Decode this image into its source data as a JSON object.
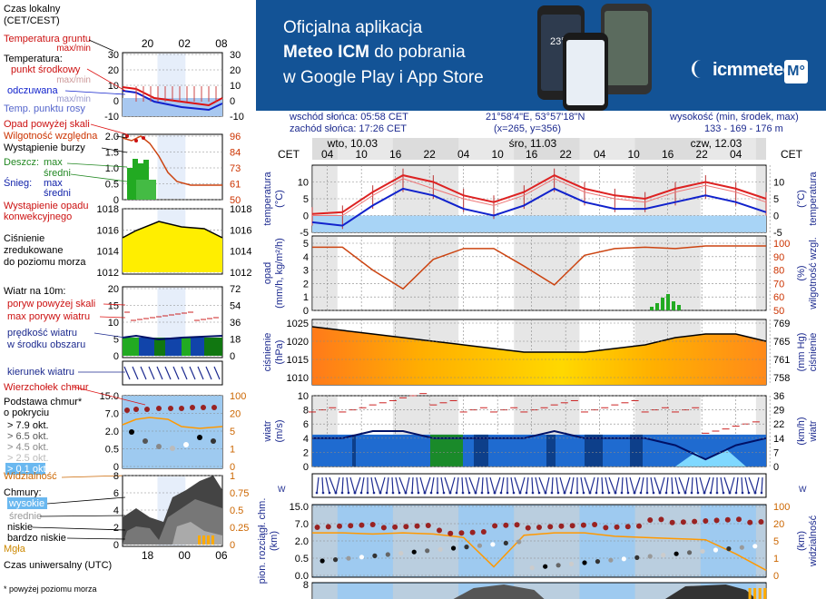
{
  "banner": {
    "line1": "Oficjalna aplikacja",
    "line2_bold": "Meteo ICM",
    "line2_rest": " do pobrania",
    "line3": "w Google Play i App Store",
    "phone_text": "23°",
    "logo_text": "icmmeteo",
    "logo_mark": "M°",
    "bg_color": "#135396"
  },
  "info": {
    "sunrise": "wschód słońca: 05:58 CET",
    "sunset": "zachód słońca: 17:26 CET",
    "coords": "21°58'4\"E, 53°57'18\"N",
    "grid": "(x=265,  y=356)",
    "elev_label": "wysokość (min, środek, max)",
    "elev_values": "133 - 169 - 176 m"
  },
  "legend": {
    "time_local_1": "Czas lokalny",
    "time_local_2": "(CET/CEST)",
    "hours_top": [
      "20",
      "02",
      "08"
    ],
    "temp_ground_1": "Temperatura gruntu",
    "temp_ground_2": "max/min",
    "temperature": "Temperatura:",
    "temp_mid": "punkt środkowy",
    "temp_maxmin": "max/min",
    "temp_feel": "odczuwana",
    "temp_feel_maxmin": "max/min",
    "temp_dew": "Temp. punktu rosy",
    "precip_title": "Opad powyżej skali",
    "humidity": "Wilgotność względna",
    "storm": "Wystąpienie burzy",
    "rain": "Deszcz:",
    "rain_max": "max",
    "rain_mean": "średni",
    "snow": "Śnieg:",
    "snow_max": "max",
    "snow_mean": "średni",
    "precip_occ_1": "Wystąpienie opadu",
    "precip_occ_2": "konwekcyjnego",
    "pressure_1": "Ciśnienie",
    "pressure_2": "zredukowane",
    "pressure_3": "do poziomu morza",
    "wind_title": "Wiatr na 10m:",
    "wind_gust_over": "poryw powyżej skali",
    "wind_gust_max": "max porywy wiatru",
    "wind_speed_1": "prędkość wiatru",
    "wind_speed_2": "w środku obszaru",
    "wind_dir": "kierunek wiatru",
    "cloud_top": "Wierzchołek chmur",
    "cloud_base_1": "Podstawa chmur*",
    "cloud_base_2": "o pokryciu",
    "okt1": "> 7.9 okt.",
    "okt2": "> 6.5 okt.",
    "okt3": "> 4.5 okt.",
    "okt4": "> 2.5 okt.",
    "okt5": "> 0.1 okt.",
    "visibility": "Widzialność",
    "clouds": "Chmury:",
    "cl_high": "wysokie",
    "cl_mid": "średnie",
    "cl_low": "niskie",
    "cl_vlow": "bardzo niskie",
    "fog": "Mgła",
    "hours_bottom": [
      "18",
      "00",
      "06"
    ],
    "time_utc": "Czas uniwersalny (UTC)",
    "footnote": "* powyżej poziomu morza",
    "ticks_temp_l": [
      "30",
      "20",
      "10",
      "0",
      "-10"
    ],
    "ticks_temp_r": [
      "30",
      "20",
      "10",
      "0",
      "-10"
    ],
    "ticks_prec_l": [
      "2.0",
      "1.5",
      "1.0",
      "0.5",
      "0"
    ],
    "ticks_prec_r": [
      "96",
      "84",
      "73",
      "61",
      "50"
    ],
    "ticks_pres_l": [
      "1018",
      "1016",
      "1014",
      "1012"
    ],
    "ticks_pres_r": [
      "1018",
      "1016",
      "1014",
      "1012"
    ],
    "ticks_wind_l": [
      "20",
      "15",
      "10",
      "5",
      "0"
    ],
    "ticks_wind_r": [
      "72",
      "54",
      "36",
      "18",
      "0"
    ],
    "ticks_cb_l": [
      "15.0",
      "7.0",
      "2.0",
      "0.5",
      "0"
    ],
    "ticks_cb_r": [
      "100",
      "20",
      "5",
      "1",
      "0"
    ],
    "ticks_cl_l": [
      "8",
      "6",
      "4",
      "2",
      "0"
    ],
    "ticks_cl_r": [
      "1",
      "0.75",
      "0.5",
      "0.25",
      "0"
    ]
  },
  "main": {
    "cet": "CET",
    "days": [
      "wto, 10.03",
      "śro, 11.03",
      "czw, 12.03"
    ],
    "hours": [
      "04",
      "10",
      "16",
      "22",
      "04",
      "10",
      "16",
      "22",
      "04",
      "10",
      "16",
      "22",
      "04"
    ],
    "p1_left": "temperatura\n(°C)",
    "p1_right": "(°C)\ntemperatura",
    "p1_ticks_l": [
      "10",
      "5",
      "0",
      "-5"
    ],
    "p1_ticks_r": [
      "10",
      "5",
      "0",
      "-5"
    ],
    "p2_left": "opad\n(mm/h, kg/m²/h)",
    "p2_right": "(%)\nwilgotność wzgl.",
    "p2_ticks_l": [
      "5",
      "4",
      "3",
      "2",
      "1",
      "0"
    ],
    "p2_ticks_r": [
      "100",
      "90",
      "80",
      "70",
      "60",
      "50"
    ],
    "p3_left": "ciśnienie\n(hPa)",
    "p3_right": "(mm Hg)\nciśnienie",
    "p3_ticks_l": [
      "1025",
      "1020",
      "1015",
      "1010"
    ],
    "p3_ticks_r": [
      "769",
      "765",
      "761",
      "758"
    ],
    "p4_left": "wiatr\n(m/s)",
    "p4_right": "(km/h)\nwiatr",
    "p4_ticks_l": [
      "10",
      "8",
      "6",
      "4",
      "2",
      "0"
    ],
    "p4_ticks_r": [
      "36",
      "29",
      "22",
      "14",
      "7",
      "0"
    ],
    "p6_left": "pion. rozciągł. chm.\n(km)",
    "p6_right": "(km)\nwidzialność",
    "p6_ticks_l": [
      "15.0",
      "7.0",
      "2.0",
      "0.5",
      "0.0"
    ],
    "p6_ticks_r": [
      "100",
      "20",
      "5",
      "1",
      "0"
    ],
    "p7_ticks_l": [
      "8"
    ]
  },
  "colors": {
    "temp": "#dd1111",
    "feel": "#1122cc",
    "dew": "#aac8ee",
    "humidity": "#cc4411",
    "rain": "#22aa22",
    "pressure": "#ffcc00",
    "wind_label": "#1c2a8f",
    "visibility": "#ff9900"
  },
  "chart_data": [
    {
      "type": "line",
      "title": "temperatura",
      "ylabel": "temperatura (°C)",
      "ylim": [
        -5,
        15
      ],
      "x": [
        0,
        6,
        12,
        18,
        24,
        30,
        36,
        42,
        48,
        54,
        60,
        66,
        72,
        78,
        84,
        90
      ],
      "series": [
        {
          "name": "temperatura max",
          "values": [
            0.5,
            1,
            7,
            12,
            10,
            6,
            4,
            7,
            12,
            8,
            6,
            5,
            8,
            10,
            8,
            5
          ]
        },
        {
          "name": "punkt środkowy",
          "values": [
            0,
            0,
            6,
            11,
            8,
            5,
            3,
            6,
            11,
            7,
            5,
            4,
            7,
            9,
            7,
            4
          ]
        },
        {
          "name": "temperatura odczuwana",
          "values": [
            -2,
            -3,
            3,
            8,
            6,
            2,
            0,
            3,
            8,
            4,
            2,
            2,
            4,
            6,
            4,
            1
          ]
        }
      ]
    },
    {
      "type": "line",
      "title": "wilgotność względna",
      "ylabel": "(%)",
      "ylim": [
        50,
        100
      ],
      "x": [
        0,
        6,
        12,
        18,
        24,
        30,
        36,
        42,
        48,
        54,
        60,
        66,
        72,
        78,
        84,
        90
      ],
      "series": [
        {
          "name": "wilgotność",
          "values": [
            97,
            97,
            80,
            66,
            88,
            96,
            96,
            83,
            69,
            91,
            96,
            97,
            96,
            98,
            98,
            98
          ]
        }
      ]
    },
    {
      "type": "area",
      "title": "ciśnienie",
      "ylabel": "ciśnienie (hPa)",
      "ylim": [
        1008,
        1026
      ],
      "x": [
        0,
        6,
        12,
        18,
        24,
        30,
        36,
        42,
        48,
        54,
        60,
        66,
        72,
        78,
        84,
        90
      ],
      "series": [
        {
          "name": "ciśnienie",
          "values": [
            1024,
            1023,
            1022,
            1021,
            1020,
            1019,
            1018,
            1017,
            1017,
            1017,
            1018,
            1019,
            1021,
            1022,
            1022,
            1020
          ]
        }
      ]
    },
    {
      "type": "line",
      "title": "wiatr",
      "ylabel": "wiatr (m/s)",
      "ylim": [
        0,
        10
      ],
      "x": [
        0,
        6,
        12,
        18,
        24,
        30,
        36,
        42,
        48,
        54,
        60,
        66,
        72,
        78,
        84,
        90
      ],
      "series": [
        {
          "name": "prędkość wiatru",
          "values": [
            4,
            4,
            5,
            5,
            4,
            4,
            4,
            4,
            5,
            4,
            4,
            4,
            3,
            1,
            3,
            4
          ]
        },
        {
          "name": "max porywy",
          "values": [
            8,
            8,
            9,
            10,
            9,
            8,
            8,
            8,
            9,
            8,
            9,
            8,
            8,
            5,
            6,
            8
          ]
        }
      ]
    },
    {
      "type": "line",
      "title": "widzialność",
      "ylabel": "widzialność (km)",
      "ylim": [
        0,
        100
      ],
      "x": [
        0,
        6,
        12,
        18,
        24,
        30,
        36,
        42,
        48,
        54,
        60,
        66,
        72,
        78,
        84,
        90
      ],
      "series": [
        {
          "name": "widzialność",
          "values": [
            12,
            12,
            11,
            12,
            11,
            8,
            0.5,
            10,
            12,
            12,
            9,
            8,
            7,
            6,
            2,
            0.3
          ]
        }
      ]
    }
  ]
}
